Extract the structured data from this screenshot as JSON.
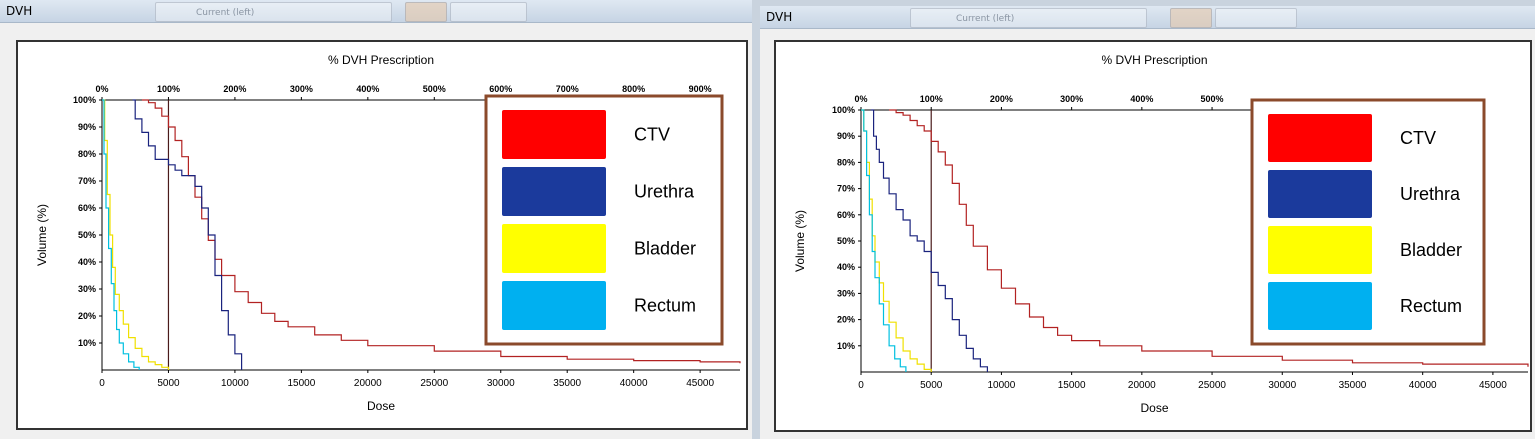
{
  "windows": [
    {
      "title": "DVH",
      "toolbar_ghost_label": "Current (left)",
      "legend_border_color": "#8b4a2b",
      "chart_data": {
        "type": "line",
        "title": "% DVH Prescription",
        "xlabel": "Dose",
        "ylabel": "Volume (%)",
        "xlim": [
          0,
          48000
        ],
        "ylim": [
          0,
          100
        ],
        "xticks": [
          0,
          5000,
          10000,
          15000,
          20000,
          25000,
          30000,
          35000,
          40000,
          45000
        ],
        "yticks": [
          10,
          20,
          30,
          40,
          50,
          60,
          70,
          80,
          90,
          100
        ],
        "ytick_labels": [
          "10%",
          "20%",
          "30%",
          "40%",
          "50%",
          "60%",
          "70%",
          "80%",
          "90%",
          "100%"
        ],
        "top_axis_ticks": [
          "0%",
          "100%",
          "200%",
          "300%",
          "400%",
          "500%",
          "600%",
          "700%",
          "800%",
          "900%"
        ],
        "prescription_line_dose": 5000,
        "legend_placement": "top-right",
        "grid": false,
        "series": [
          {
            "name": "CTV",
            "color": "#b22222",
            "x": [
              3000,
              3500,
              4000,
              4500,
              5000,
              5500,
              6000,
              6500,
              7000,
              7500,
              8000,
              8500,
              9000,
              10000,
              11000,
              12000,
              13000,
              14000,
              16000,
              18000,
              20000,
              25000,
              30000,
              35000,
              40000,
              45000,
              48000
            ],
            "y": [
              100,
              99,
              97,
              94,
              90,
              85,
              79,
              72,
              64,
              56,
              48,
              41,
              35,
              29,
              25,
              21,
              18,
              16,
              13,
              11,
              9,
              7,
              5,
              4,
              3.5,
              3,
              2.5
            ]
          },
          {
            "name": "Urethra",
            "color": "#1a237e",
            "x": [
              2300,
              2500,
              3000,
              3500,
              4000,
              5000,
              5500,
              6000,
              7000,
              7500,
              8000,
              8500,
              9000,
              9500,
              10000,
              10500
            ],
            "y": [
              100,
              93,
              88,
              83,
              78,
              76,
              74,
              72,
              68,
              60,
              50,
              35,
              22,
              13,
              6,
              0
            ]
          },
          {
            "name": "Bladder",
            "color": "#f0e000",
            "x": [
              0,
              200,
              400,
              600,
              800,
              1000,
              1300,
              1600,
              2000,
              2500,
              3000,
              3500,
              4000,
              4500,
              5000
            ],
            "y": [
              100,
              85,
              65,
              50,
              38,
              28,
              22,
              17,
              12,
              8,
              5,
              3,
              2,
              1,
              0
            ]
          },
          {
            "name": "Rectum",
            "color": "#00c0e0",
            "x": [
              0,
              150,
              300,
              500,
              700,
              900,
              1100,
              1300,
              1600,
              2000,
              2400,
              2800
            ],
            "y": [
              100,
              80,
              60,
              45,
              32,
              22,
              15,
              10,
              6,
              3,
              1,
              0
            ]
          }
        ]
      }
    },
    {
      "title": "DVH",
      "toolbar_ghost_label": "Current (left)",
      "legend_border_color": "#8b4a2b",
      "chart_data": {
        "type": "line",
        "title": "% DVH Prescription",
        "xlabel": "Dose",
        "ylabel": "Volume (%)",
        "xlim": [
          0,
          47500
        ],
        "ylim": [
          0,
          100
        ],
        "xticks": [
          0,
          5000,
          10000,
          15000,
          20000,
          25000,
          30000,
          35000,
          40000,
          45000
        ],
        "yticks": [
          10,
          20,
          30,
          40,
          50,
          60,
          70,
          80,
          90,
          100
        ],
        "ytick_labels": [
          "10%",
          "20%",
          "30%",
          "40%",
          "50%",
          "60%",
          "70%",
          "80%",
          "90%",
          "100%"
        ],
        "top_axis_ticks": [
          "0%",
          "100%",
          "200%",
          "300%",
          "400%",
          "500%"
        ],
        "prescription_line_dose": 5000,
        "legend_placement": "top-right",
        "grid": false,
        "series": [
          {
            "name": "CTV",
            "color": "#b22222",
            "x": [
              2000,
              2500,
              3000,
              3500,
              4000,
              4500,
              5000,
              5500,
              6000,
              6500,
              7000,
              7500,
              8000,
              9000,
              10000,
              11000,
              12000,
              13000,
              14000,
              15000,
              17000,
              20000,
              25000,
              30000,
              35000,
              40000,
              47500
            ],
            "y": [
              100,
              99,
              98,
              96,
              94,
              92,
              88,
              84,
              79,
              72,
              64,
              56,
              48,
              39,
              32,
              26,
              21,
              17,
              14,
              12,
              10,
              8,
              6,
              4.5,
              3.5,
              3,
              2
            ]
          },
          {
            "name": "Urethra",
            "color": "#1a237e",
            "x": [
              700,
              900,
              1100,
              1300,
              1600,
              2000,
              2500,
              3000,
              3500,
              4000,
              4500,
              5000,
              5500,
              6000,
              6500,
              7000,
              7500,
              8000,
              8500,
              9000
            ],
            "y": [
              100,
              90,
              85,
              80,
              74,
              68,
              62,
              58,
              52,
              50,
              46,
              38,
              33,
              28,
              20,
              14,
              9,
              5,
              2,
              0
            ]
          },
          {
            "name": "Bladder",
            "color": "#f0e000",
            "x": [
              0,
              200,
              400,
              600,
              800,
              1000,
              1300,
              1600,
              2000,
              2500,
              3000,
              3500,
              4000,
              4500,
              5000
            ],
            "y": [
              100,
              92,
              80,
              66,
              52,
              42,
              34,
              27,
              19,
              13,
              8,
              5,
              3,
              1,
              0
            ]
          },
          {
            "name": "Rectum",
            "color": "#00c0e0",
            "x": [
              0,
              200,
              400,
              600,
              800,
              1000,
              1300,
              1600,
              2000,
              2400,
              2800,
              3200
            ],
            "y": [
              100,
              92,
              75,
              60,
              46,
              36,
              26,
              18,
              10,
              5,
              2,
              0
            ]
          }
        ]
      }
    }
  ]
}
